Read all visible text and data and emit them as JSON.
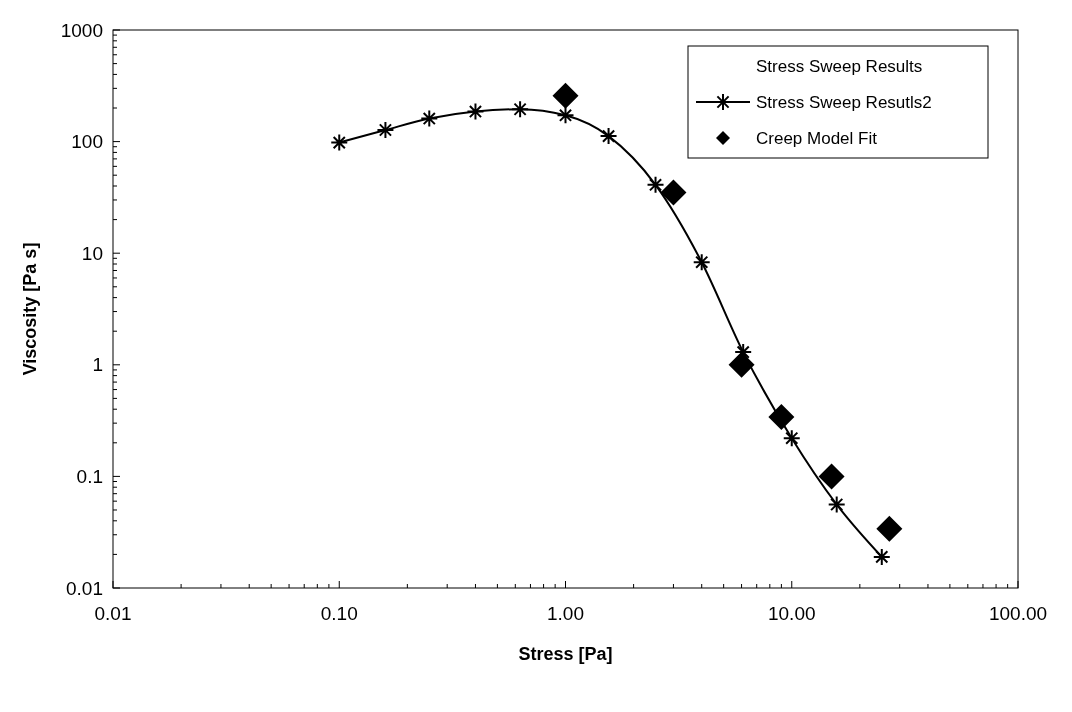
{
  "chart_data": {
    "type": "line",
    "xlabel": "Stress [Pa]",
    "ylabel": "Viscosity [Pa s]",
    "legend_title": "Stress Sweep Results",
    "log": "xy",
    "grid": false,
    "legend": "top right",
    "xlim": [
      0.01,
      100
    ],
    "xticks": [
      0.01,
      {
        "value": 0.1,
        "label": "0.10"
      },
      {
        "value": 1,
        "label": "1.00"
      },
      {
        "value": 10,
        "label": "10.00"
      },
      {
        "value": 100,
        "label": "100.00"
      }
    ],
    "ylim": [
      0.01,
      1000
    ],
    "yticks": [
      0.01,
      0.1,
      1,
      10,
      100,
      1000
    ],
    "series": [
      {
        "name": "Stress Sweep Resutls2",
        "marker": "cross",
        "color": "#000000",
        "x": [
          0.1,
          0.16,
          0.25,
          0.4,
          0.63,
          1.0,
          1.55,
          2.5,
          4.0,
          6.1,
          10,
          15.8,
          25
        ],
        "values": [
          98,
          127,
          161,
          186,
          195,
          172,
          112,
          41,
          8.3,
          1.3,
          0.22,
          0.056,
          0.019
        ]
      },
      {
        "name": "Creep Model Fit",
        "type": "scatter",
        "marker": "diamond",
        "color": "#000000",
        "x": [
          1.0,
          3.0,
          6.0,
          9.0,
          15,
          27
        ],
        "values": [
          258,
          35,
          1.0,
          0.34,
          0.1,
          0.034
        ]
      }
    ]
  }
}
